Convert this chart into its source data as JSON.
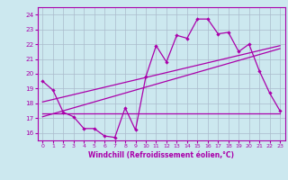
{
  "xlabel": "Windchill (Refroidissement éolien,°C)",
  "bg_color": "#cce8ef",
  "line_color": "#aa00aa",
  "grid_color": "#aabbcc",
  "x_ticks": [
    0,
    1,
    2,
    3,
    4,
    5,
    6,
    7,
    8,
    9,
    10,
    11,
    12,
    13,
    14,
    15,
    16,
    17,
    18,
    19,
    20,
    21,
    22,
    23
  ],
  "y_ticks": [
    16,
    17,
    18,
    19,
    20,
    21,
    22,
    23,
    24
  ],
  "xlim": [
    -0.5,
    23.5
  ],
  "ylim": [
    15.5,
    24.5
  ],
  "line1_x": [
    0,
    1,
    2,
    3,
    4,
    5,
    6,
    7,
    8,
    9,
    10,
    11,
    12,
    13,
    14,
    15,
    16,
    17,
    18,
    19,
    20,
    21,
    22,
    23
  ],
  "line1_y": [
    19.5,
    18.9,
    17.4,
    17.1,
    16.3,
    16.3,
    15.8,
    15.7,
    17.7,
    16.2,
    19.8,
    21.9,
    20.8,
    22.6,
    22.4,
    23.7,
    23.7,
    22.7,
    22.8,
    21.5,
    22.0,
    20.2,
    18.7,
    17.5
  ],
  "line2_x": [
    0,
    23
  ],
  "line2_y": [
    17.3,
    17.3
  ],
  "line3_x": [
    0,
    23
  ],
  "line3_y": [
    17.1,
    21.7
  ],
  "line4_x": [
    0,
    23
  ],
  "line4_y": [
    18.1,
    21.9
  ]
}
